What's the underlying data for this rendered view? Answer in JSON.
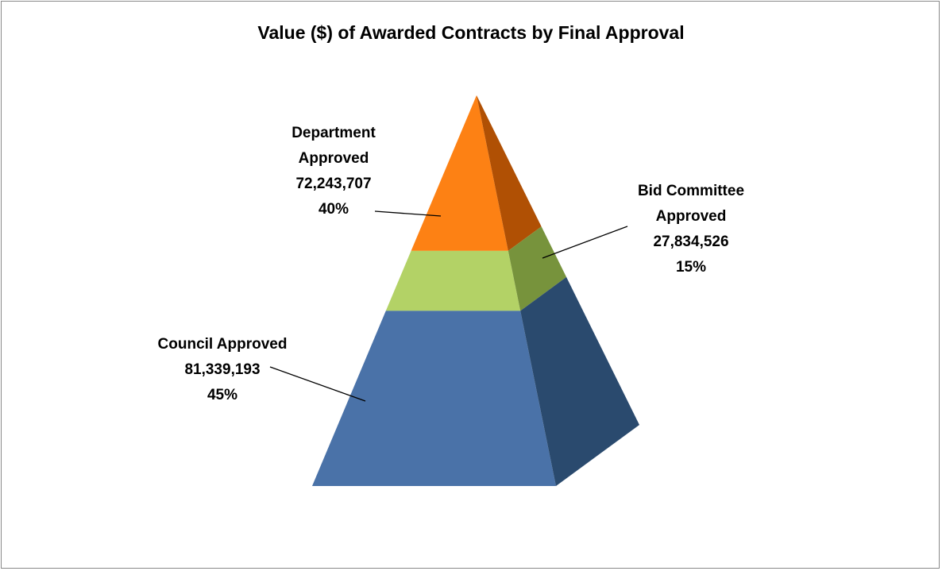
{
  "chart_data": {
    "type": "pyramid",
    "title": "Value ($) of Awarded Contracts by Final Approval",
    "categories": [
      "Department Approved",
      "Bid Committee Approved",
      "Council Approved"
    ],
    "values": [
      72243707,
      27834526,
      81339193
    ],
    "value_labels": [
      "72,243,707",
      "27,834,526",
      "81,339,193"
    ],
    "percents": [
      40,
      15,
      45
    ],
    "percent_labels": [
      "40%",
      "15%",
      "45%"
    ],
    "colors": [
      "#fd8114",
      "#b3d266",
      "#4a72a8"
    ],
    "side_colors": [
      "#b05004",
      "#77933c",
      "#2a4a6e"
    ]
  }
}
